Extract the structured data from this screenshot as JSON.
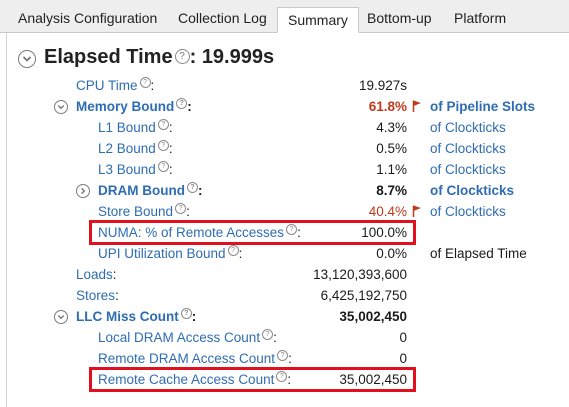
{
  "tabs": [
    {
      "label": "Analysis Configuration",
      "active": false
    },
    {
      "label": "Collection Log",
      "active": false
    },
    {
      "label": "Summary",
      "active": true
    },
    {
      "label": "Bottom-up",
      "active": false
    },
    {
      "label": "Platform",
      "active": false
    }
  ],
  "summary": {
    "title": "Elapsed Time",
    "title_value": "19.999s",
    "help_glyph": "?",
    "colon": ":",
    "rows": [
      {
        "label": "CPU Time",
        "value": "19.927s",
        "unit": ""
      },
      {
        "label": "Memory Bound",
        "value": "61.8%",
        "unit": "of Pipeline Slots",
        "flagged": true
      },
      {
        "label": "L1 Bound",
        "value": "4.3%",
        "unit": "of Clockticks"
      },
      {
        "label": "L2 Bound",
        "value": "0.5%",
        "unit": "of Clockticks"
      },
      {
        "label": "L3 Bound",
        "value": "1.1%",
        "unit": "of Clockticks"
      },
      {
        "label": "DRAM Bound",
        "value": "8.7%",
        "unit": "of Clockticks"
      },
      {
        "label": "Store Bound",
        "value": "40.4%",
        "unit": "of Clockticks",
        "flagged": true
      },
      {
        "label": "NUMA: % of Remote Accesses",
        "value": "100.0%",
        "unit": "",
        "highlighted": true
      },
      {
        "label": "UPI Utilization Bound",
        "value": "0.0%",
        "unit": "of Elapsed Time"
      },
      {
        "label": "Loads",
        "value": "13,120,393,600",
        "unit": ""
      },
      {
        "label": "Stores",
        "value": "6,425,192,750",
        "unit": ""
      },
      {
        "label": "LLC Miss Count",
        "value": "35,002,450",
        "unit": ""
      },
      {
        "label": "Local DRAM Access Count",
        "value": "0",
        "unit": ""
      },
      {
        "label": "Remote DRAM Access Count",
        "value": "0",
        "unit": ""
      },
      {
        "label": "Remote Cache Access Count",
        "value": "35,002,450",
        "unit": "",
        "highlighted": true
      }
    ]
  },
  "colors": {
    "link_blue": "#2e6db4",
    "warning_red": "#c0391b",
    "highlight_red": "#e0101e",
    "tab_bg": "#eeeeee"
  },
  "icons": [
    "expand-toggle-icon",
    "help-icon",
    "warning-flag-icon"
  ]
}
